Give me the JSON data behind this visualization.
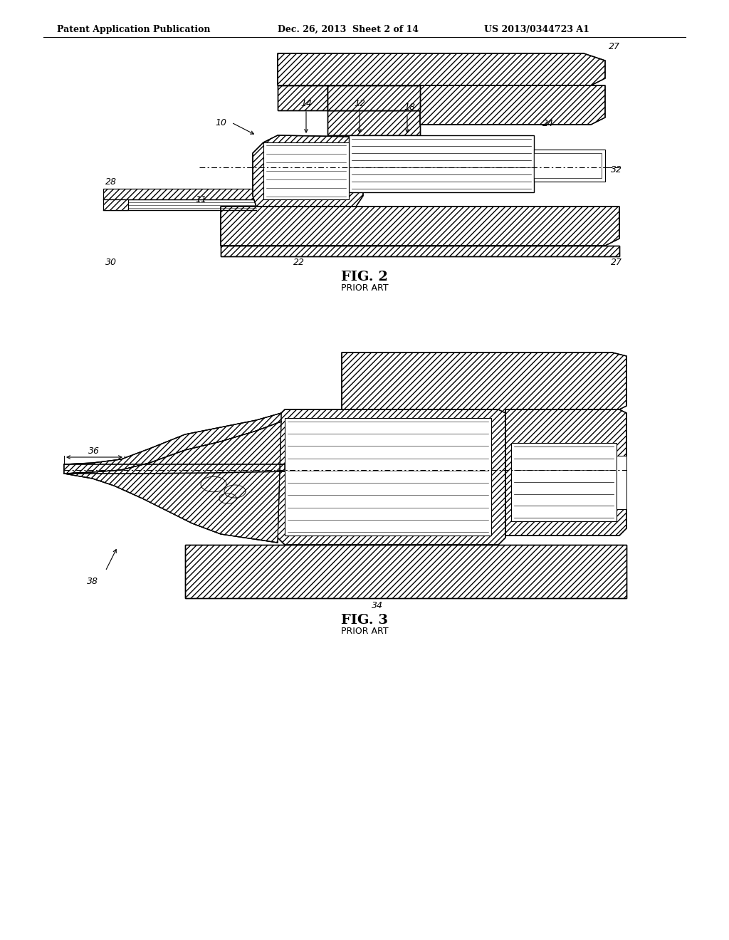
{
  "bg_color": "#ffffff",
  "header_left": "Patent Application Publication",
  "header_mid": "Dec. 26, 2013  Sheet 2 of 14",
  "header_right": "US 2013/0344723 A1",
  "fig2_label": "FIG. 2",
  "fig2_sub": "PRIOR ART",
  "fig3_label": "FIG. 3",
  "fig3_sub": "PRIOR ART"
}
